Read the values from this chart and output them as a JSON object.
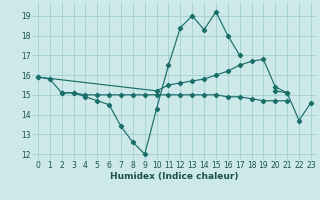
{
  "xlabel": "Humidex (Indice chaleur)",
  "xlim": [
    -0.5,
    23.5
  ],
  "ylim": [
    11.7,
    19.7
  ],
  "yticks": [
    12,
    13,
    14,
    15,
    16,
    17,
    18,
    19
  ],
  "xticks": [
    0,
    1,
    2,
    3,
    4,
    5,
    6,
    7,
    8,
    9,
    10,
    11,
    12,
    13,
    14,
    15,
    16,
    17,
    18,
    19,
    20,
    21,
    22,
    23
  ],
  "bg_color": "#cce8e8",
  "grid_color": "#99cccc",
  "line_color": "#1a6e6a",
  "series": [
    {
      "x": [
        0,
        1,
        2,
        3,
        4,
        5,
        6,
        7,
        8,
        9,
        10,
        11,
        12,
        13,
        14,
        15,
        16,
        17
      ],
      "y": [
        15.9,
        15.8,
        15.1,
        15.1,
        14.9,
        14.7,
        14.5,
        13.4,
        12.6,
        12.0,
        14.3,
        16.5,
        18.4,
        19.0,
        18.3,
        19.2,
        18.0,
        17.0
      ]
    },
    {
      "x": [
        20,
        21,
        22,
        23
      ],
      "y": [
        15.2,
        15.1,
        13.7,
        14.6
      ]
    },
    {
      "x": [
        0,
        10,
        11,
        12,
        13,
        14,
        15,
        16,
        17,
        18,
        19,
        20,
        21
      ],
      "y": [
        15.9,
        15.2,
        15.5,
        15.6,
        15.7,
        15.8,
        16.0,
        16.2,
        16.5,
        16.7,
        16.8,
        15.4,
        15.1
      ]
    },
    {
      "x": [
        2,
        3,
        4,
        5,
        6,
        7,
        8,
        9,
        10,
        11,
        12,
        13,
        14,
        15,
        16,
        17,
        18,
        19,
        20,
        21
      ],
      "y": [
        15.1,
        15.1,
        15.0,
        15.0,
        15.0,
        15.0,
        15.0,
        15.0,
        15.0,
        15.0,
        15.0,
        15.0,
        15.0,
        15.0,
        14.9,
        14.9,
        14.8,
        14.7,
        14.7,
        14.7
      ]
    }
  ]
}
